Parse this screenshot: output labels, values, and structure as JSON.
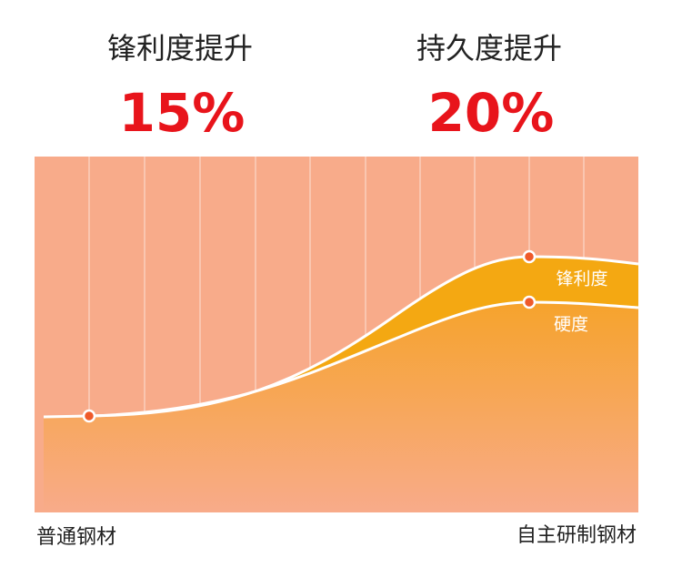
{
  "stats": [
    {
      "label": "锋利度提升",
      "value": "15%"
    },
    {
      "label": "持久度提升",
      "value": "20%"
    }
  ],
  "curves": {
    "upper": "锋利度",
    "lower": "硬度"
  },
  "x_labels": {
    "start": "普通钢材",
    "end": "自主研制钢材"
  }
}
